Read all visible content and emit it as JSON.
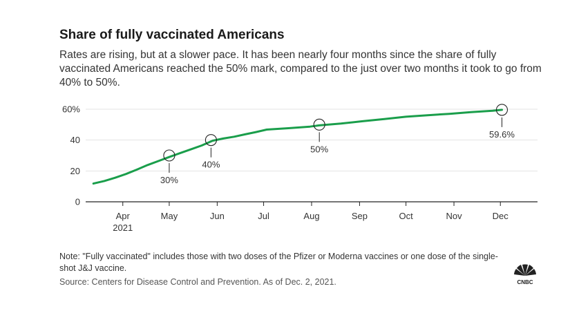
{
  "title": "Share of fully vaccinated Americans",
  "subtitle": "Rates are rising, but at a slower pace. It has been nearly four months since the share of fully vaccinated Americans reached the 50% mark, compared to the just over two months it took to go from 40% to 50%.",
  "note": "Note: \"Fully vaccinated\" includes those with two doses of the Pfizer or Moderna vaccines or one dose of the single-shot J&J vaccine.",
  "source": "Source: Centers for Disease Control and Prevention. As of Dec. 2, 2021.",
  "logo_text": "CNBC",
  "colors": {
    "line": "#1a9e4b",
    "grid": "#e3e3e3",
    "axis": "#222222"
  },
  "chart_data": {
    "type": "line",
    "title": "Share of fully vaccinated Americans",
    "xlabel": "",
    "ylabel": "",
    "ylim": [
      0,
      60
    ],
    "xlim": [
      "2021-03-08",
      "2021-12-25"
    ],
    "grid": "horizontal",
    "yticks": [
      {
        "value": 0,
        "label": "0"
      },
      {
        "value": 20,
        "label": "20"
      },
      {
        "value": 40,
        "label": "40"
      },
      {
        "value": 60,
        "label": "60%"
      }
    ],
    "xticks": [
      {
        "date": "2021-04-01",
        "label": "Apr",
        "sublabel": "2021"
      },
      {
        "date": "2021-05-01",
        "label": "May",
        "sublabel": ""
      },
      {
        "date": "2021-06-01",
        "label": "Jun",
        "sublabel": ""
      },
      {
        "date": "2021-07-01",
        "label": "Jul",
        "sublabel": ""
      },
      {
        "date": "2021-08-01",
        "label": "Aug",
        "sublabel": ""
      },
      {
        "date": "2021-09-01",
        "label": "Sep",
        "sublabel": ""
      },
      {
        "date": "2021-10-01",
        "label": "Oct",
        "sublabel": ""
      },
      {
        "date": "2021-11-01",
        "label": "Nov",
        "sublabel": ""
      },
      {
        "date": "2021-12-01",
        "label": "Dec",
        "sublabel": ""
      }
    ],
    "series": [
      {
        "name": "",
        "points": [
          [
            "2021-03-13",
            11.8
          ],
          [
            "2021-03-20",
            13.5
          ],
          [
            "2021-03-27",
            15.6
          ],
          [
            "2021-04-03",
            18.0
          ],
          [
            "2021-04-10",
            20.8
          ],
          [
            "2021-04-17",
            23.8
          ],
          [
            "2021-04-24",
            26.4
          ],
          [
            "2021-05-01",
            29.0
          ],
          [
            "2021-05-08",
            31.5
          ],
          [
            "2021-05-15",
            34.0
          ],
          [
            "2021-05-22",
            36.5
          ],
          [
            "2021-05-29",
            39.6
          ],
          [
            "2021-06-05",
            41.0
          ],
          [
            "2021-06-12",
            42.2
          ],
          [
            "2021-06-19",
            43.7
          ],
          [
            "2021-06-26",
            45.2
          ],
          [
            "2021-07-03",
            46.8
          ],
          [
            "2021-07-17",
            47.7
          ],
          [
            "2021-07-31",
            48.7
          ],
          [
            "2021-08-06",
            49.5
          ],
          [
            "2021-08-20",
            50.7
          ],
          [
            "2021-09-03",
            52.2
          ],
          [
            "2021-09-17",
            53.6
          ],
          [
            "2021-10-01",
            55.1
          ],
          [
            "2021-10-15",
            56.1
          ],
          [
            "2021-10-29",
            57.0
          ],
          [
            "2021-11-12",
            58.1
          ],
          [
            "2021-11-26",
            59.0
          ],
          [
            "2021-12-02",
            59.6
          ]
        ]
      }
    ],
    "annotations": [
      {
        "date": "2021-05-01",
        "value": 30,
        "label": "30%",
        "placement": "below"
      },
      {
        "date": "2021-05-28",
        "value": 40,
        "label": "40%",
        "placement": "below"
      },
      {
        "date": "2021-08-06",
        "value": 50,
        "label": "50%",
        "placement": "below"
      },
      {
        "date": "2021-12-02",
        "value": 59.6,
        "label": "59.6%",
        "placement": "below"
      }
    ]
  }
}
